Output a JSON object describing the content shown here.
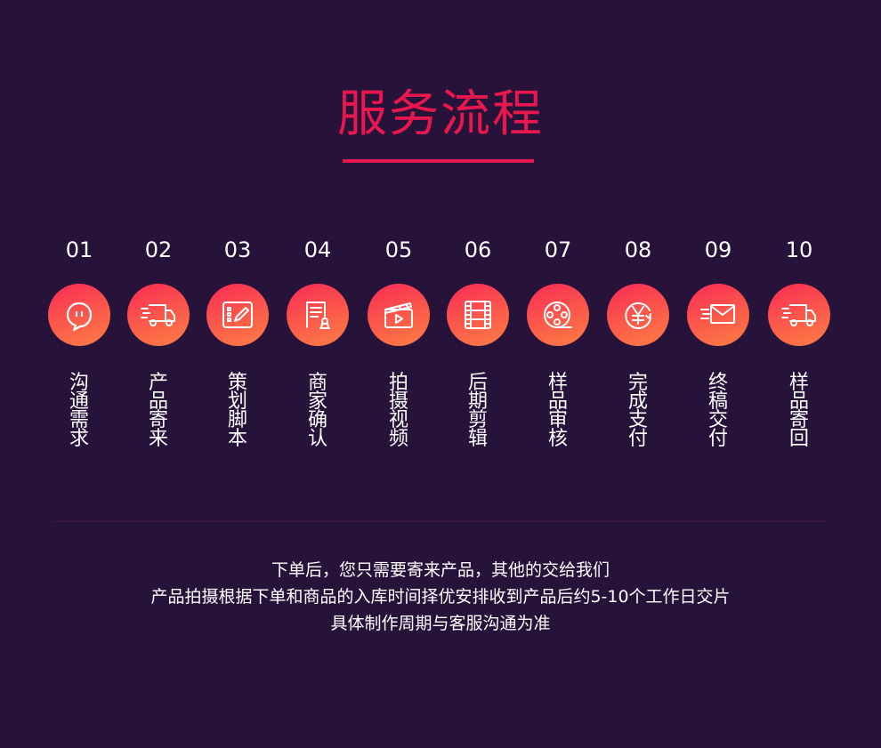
{
  "title": "服务流程",
  "steps": [
    {
      "number": "01",
      "label": "沟通需求",
      "icon": "chat-bubble-icon"
    },
    {
      "number": "02",
      "label": "产品寄来",
      "icon": "delivery-truck-icon"
    },
    {
      "number": "03",
      "label": "策划脚本",
      "icon": "edit-plan-icon"
    },
    {
      "number": "04",
      "label": "商家确认",
      "icon": "document-stamp-icon"
    },
    {
      "number": "05",
      "label": "拍摄视频",
      "icon": "clapperboard-icon"
    },
    {
      "number": "06",
      "label": "后期剪辑",
      "icon": "film-strip-icon"
    },
    {
      "number": "07",
      "label": "样品审核",
      "icon": "film-reel-icon"
    },
    {
      "number": "08",
      "label": "完成支付",
      "icon": "yuan-payment-icon"
    },
    {
      "number": "09",
      "label": "终稿交付",
      "icon": "envelope-icon"
    },
    {
      "number": "10",
      "label": "样品寄回",
      "icon": "delivery-truck-icon"
    }
  ],
  "description": [
    "下单后，您只需要寄来产品，其他的交给我们",
    "产品拍摄根据下单和商品的入库时间择优安排收到产品后约5-10个工作日交片",
    "具体制作周期与客服沟通为准"
  ],
  "colors": {
    "background": "#27123a",
    "accent": "#e8184f",
    "gradient_start": "#f92a56",
    "gradient_end": "#fd7e44"
  }
}
